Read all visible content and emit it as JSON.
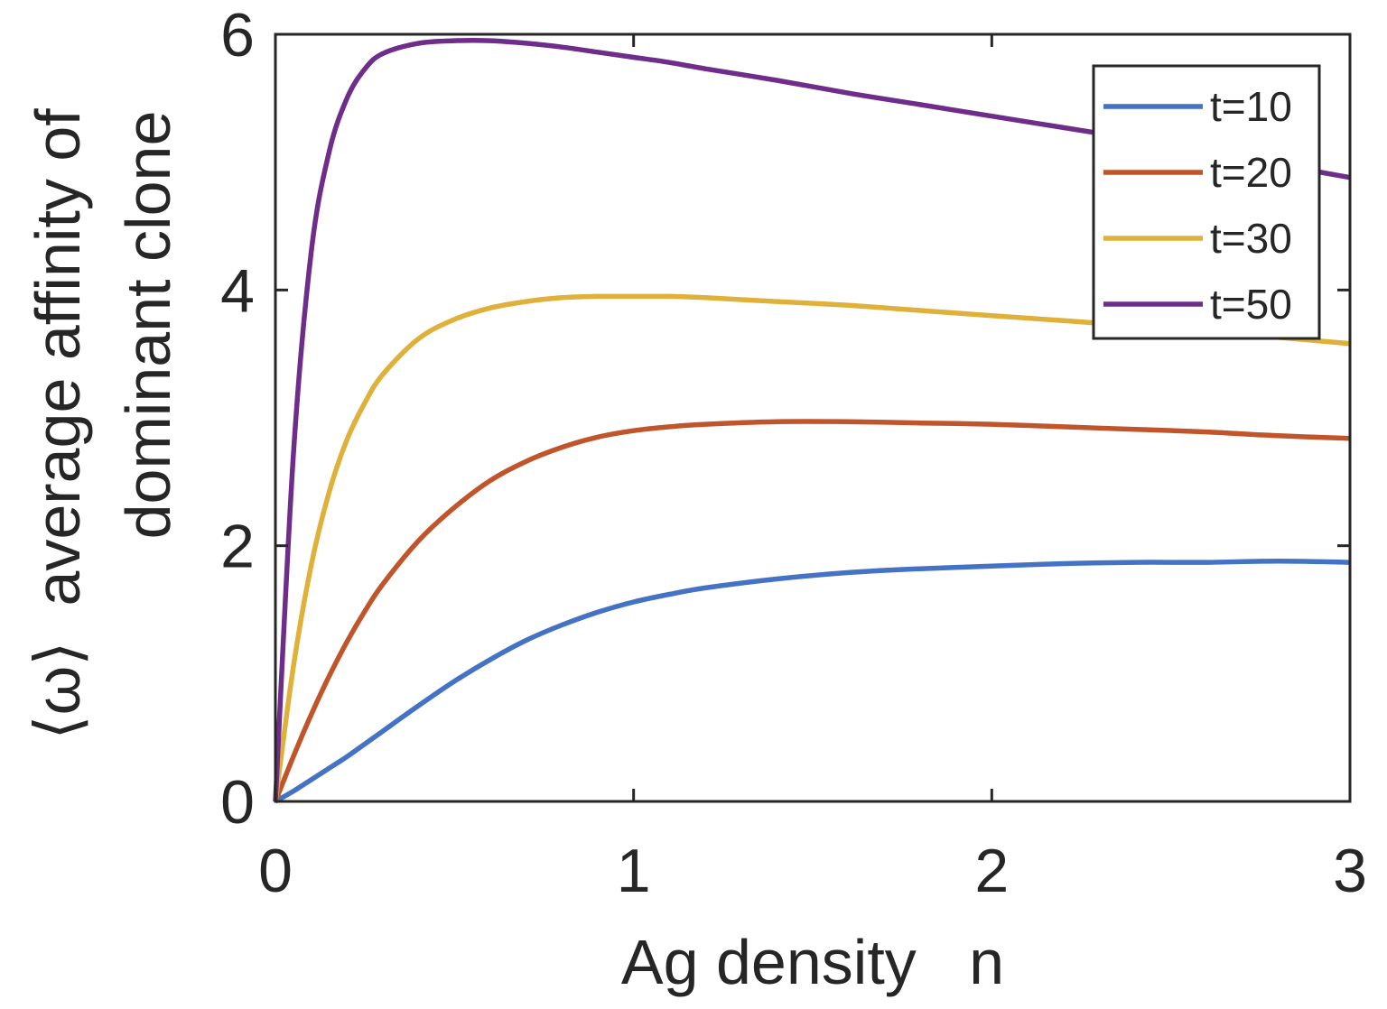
{
  "chart_data": {
    "type": "line",
    "title": "",
    "xlabel": "Ag density   n",
    "ylabel_line1": "⟨ω⟩  average affinity of",
    "ylabel_line2": "dominant clone",
    "xlim": [
      0,
      3
    ],
    "ylim": [
      0,
      6
    ],
    "xticks": [
      0,
      1,
      2,
      3
    ],
    "yticks": [
      0,
      2,
      4,
      6
    ],
    "grid": false,
    "legend_position": "top-right",
    "x": [
      0,
      0.05,
      0.1,
      0.15,
      0.2,
      0.25,
      0.3,
      0.4,
      0.5,
      0.6,
      0.7,
      0.8,
      0.9,
      1.0,
      1.1,
      1.2,
      1.4,
      1.6,
      1.8,
      2.0,
      2.2,
      2.4,
      2.6,
      2.8,
      3.0
    ],
    "series": [
      {
        "name": "t=10",
        "color": "#4472c4",
        "values": [
          0,
          0.08,
          0.17,
          0.26,
          0.35,
          0.45,
          0.55,
          0.75,
          0.94,
          1.11,
          1.26,
          1.38,
          1.48,
          1.56,
          1.62,
          1.67,
          1.74,
          1.79,
          1.82,
          1.84,
          1.86,
          1.87,
          1.87,
          1.88,
          1.87
        ]
      },
      {
        "name": "t=20",
        "color": "#c0542a",
        "values": [
          0,
          0.35,
          0.68,
          0.98,
          1.25,
          1.49,
          1.7,
          2.04,
          2.3,
          2.51,
          2.66,
          2.77,
          2.85,
          2.9,
          2.93,
          2.95,
          2.97,
          2.97,
          2.96,
          2.95,
          2.93,
          2.91,
          2.89,
          2.86,
          2.84
        ]
      },
      {
        "name": "t=30",
        "color": "#dfb13a",
        "values": [
          0,
          1.05,
          1.85,
          2.42,
          2.83,
          3.12,
          3.34,
          3.62,
          3.77,
          3.86,
          3.91,
          3.94,
          3.95,
          3.95,
          3.95,
          3.94,
          3.91,
          3.88,
          3.84,
          3.8,
          3.76,
          3.72,
          3.68,
          3.63,
          3.58
        ]
      },
      {
        "name": "t=50",
        "color": "#6e2d8a",
        "values": [
          0,
          2.7,
          4.3,
          5.08,
          5.5,
          5.73,
          5.85,
          5.93,
          5.95,
          5.95,
          5.93,
          5.9,
          5.86,
          5.82,
          5.78,
          5.73,
          5.64,
          5.54,
          5.45,
          5.36,
          5.27,
          5.18,
          5.08,
          4.98,
          4.88
        ]
      }
    ]
  }
}
